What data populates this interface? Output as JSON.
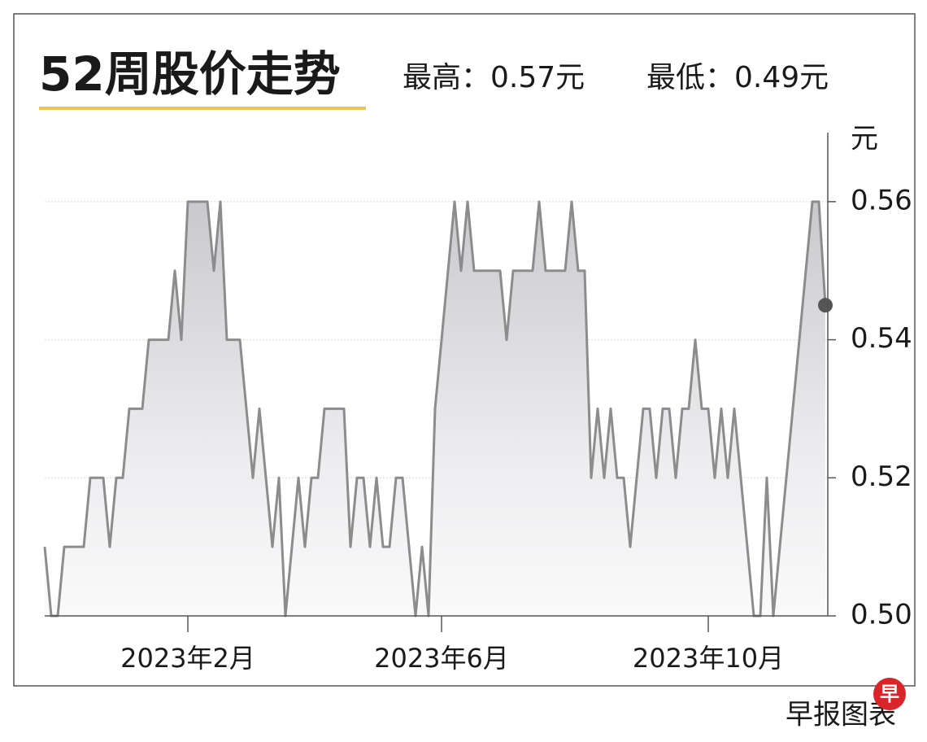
{
  "chart_data": {
    "type": "line",
    "title": "52周股价走势",
    "high_label": "最高：0.57元",
    "low_label": "最低：0.49元",
    "y_unit": "元",
    "source": "早报图表",
    "logo_text": "早",
    "categories": [
      null,
      null,
      null,
      null,
      null,
      null,
      null,
      null,
      null,
      null,
      null,
      null,
      null,
      null,
      null,
      null,
      null,
      null,
      null,
      null,
      null,
      null,
      "2023年2月",
      null,
      null,
      null,
      null,
      null,
      null,
      null,
      null,
      null,
      null,
      null,
      null,
      null,
      null,
      null,
      null,
      null,
      null,
      null,
      null,
      null,
      null,
      null,
      null,
      null,
      null,
      null,
      null,
      null,
      null,
      null,
      null,
      null,
      null,
      null,
      null,
      null,
      null,
      "2023年6月",
      null,
      null,
      null,
      null,
      null,
      null,
      null,
      null,
      null,
      null,
      null,
      null,
      null,
      null,
      null,
      null,
      null,
      null,
      null,
      null,
      null,
      null,
      null,
      null,
      null,
      null,
      null,
      null,
      null,
      null,
      null,
      null,
      null,
      null,
      null,
      null,
      null,
      null,
      null,
      null,
      "2023年10月",
      null,
      null,
      null,
      null,
      null,
      null,
      null,
      null,
      null,
      null,
      null,
      null,
      null,
      null,
      null,
      null,
      null,
      null
    ],
    "values": [
      0.51,
      0.5,
      0.5,
      0.51,
      0.51,
      0.51,
      0.51,
      0.52,
      0.52,
      0.52,
      0.51,
      0.52,
      0.52,
      0.53,
      0.53,
      0.53,
      0.54,
      0.54,
      0.54,
      0.54,
      0.55,
      0.54,
      0.56,
      0.56,
      0.56,
      0.56,
      0.55,
      0.56,
      0.54,
      0.54,
      0.54,
      0.53,
      0.52,
      0.53,
      0.52,
      0.51,
      0.52,
      0.5,
      0.51,
      0.52,
      0.51,
      0.52,
      0.52,
      0.53,
      0.53,
      0.53,
      0.53,
      0.51,
      0.52,
      0.52,
      0.51,
      0.52,
      0.51,
      0.51,
      0.52,
      0.52,
      0.51,
      0.5,
      0.51,
      0.5,
      0.53,
      0.54,
      0.55,
      0.56,
      0.55,
      0.56,
      0.55,
      0.55,
      0.55,
      0.55,
      0.55,
      0.54,
      0.55,
      0.55,
      0.55,
      0.55,
      0.56,
      0.55,
      0.55,
      0.55,
      0.55,
      0.56,
      0.55,
      0.55,
      0.52,
      0.53,
      0.52,
      0.53,
      0.52,
      0.52,
      0.51,
      0.52,
      0.53,
      0.53,
      0.52,
      0.53,
      0.53,
      0.52,
      0.53,
      0.53,
      0.54,
      0.53,
      0.53,
      0.52,
      0.53,
      0.52,
      0.53,
      0.52,
      0.51,
      0.5,
      0.5,
      0.52,
      0.5,
      0.51,
      0.52,
      0.53,
      0.54,
      0.55,
      0.56,
      0.56,
      0.545
    ],
    "color": "#8c8c8c",
    "ylim": [
      0.5,
      0.57
    ],
    "yticks": [
      {
        "value": 0.5,
        "label": "0.50"
      },
      0.52,
      0.54,
      0.56
    ],
    "grid": true
  }
}
